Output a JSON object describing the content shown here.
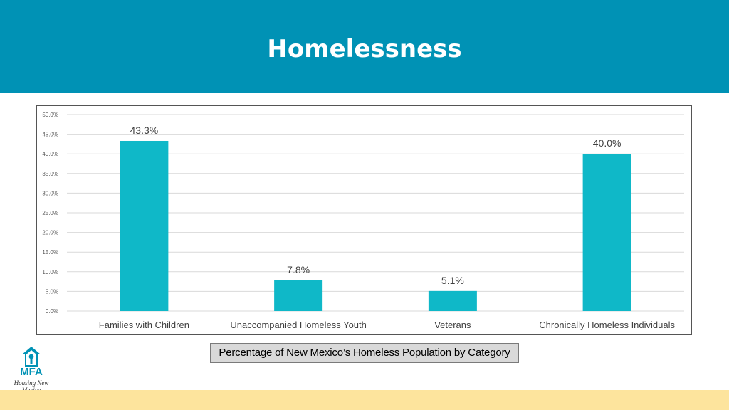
{
  "header": {
    "title": "Homelessness"
  },
  "caption": "Percentage of New Mexico’s Homeless Population by Category",
  "logo": {
    "name": "MFA",
    "tagline": "Housing New Mexico"
  },
  "colors": {
    "header": "#0092b5",
    "bar": "#0fb8c8",
    "footer": "#fde49d",
    "caption_bg": "#d9d9d9"
  },
  "chart_data": {
    "type": "bar",
    "categories": [
      "Families with Children",
      "Unaccompanied Homeless Youth",
      "Veterans",
      "Chronically Homeless Individuals"
    ],
    "values": [
      43.3,
      7.8,
      5.1,
      40.0
    ],
    "data_labels": [
      "43.3%",
      "7.8%",
      "5.1%",
      "40.0%"
    ],
    "yticks": [
      "0.0%",
      "5.0%",
      "10.0%",
      "15.0%",
      "20.0%",
      "25.0%",
      "30.0%",
      "35.0%",
      "40.0%",
      "45.0%",
      "50.0%"
    ],
    "ylim": [
      0,
      50
    ],
    "grid": true,
    "title": "",
    "xlabel": "",
    "ylabel": ""
  }
}
